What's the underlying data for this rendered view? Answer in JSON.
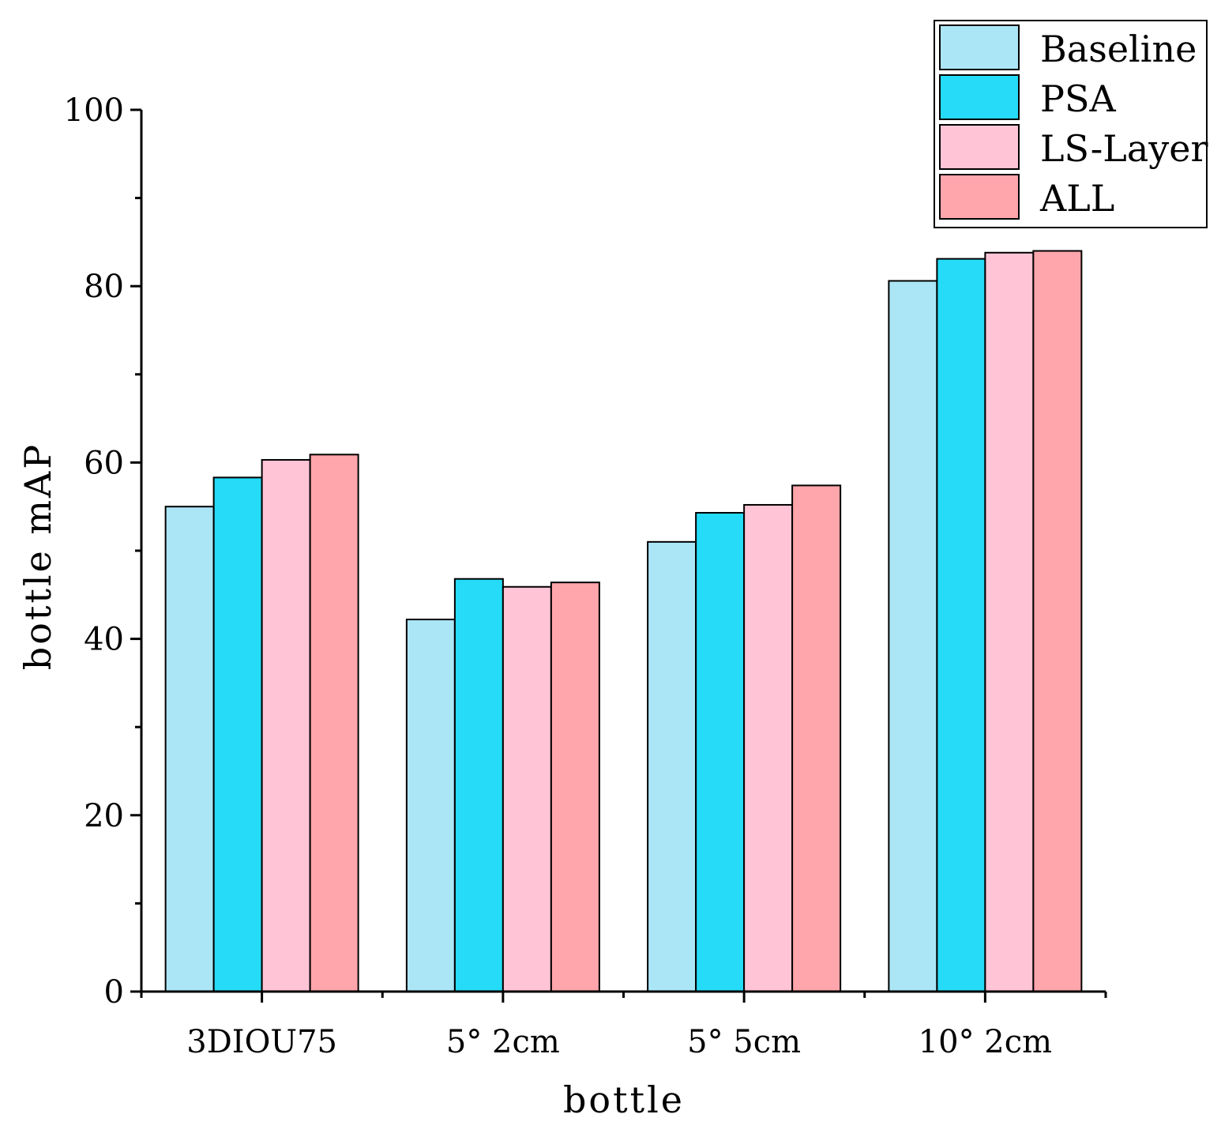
{
  "chart_data": {
    "type": "bar",
    "title": "",
    "xlabel": "bottle",
    "ylabel": "bottle mAP",
    "ylim": [
      0,
      100
    ],
    "yticks": [
      0,
      20,
      40,
      60,
      80,
      100
    ],
    "minor_tick_step": 10,
    "grid": false,
    "legend_position": "top-right",
    "categories": [
      "3DIOU75",
      "5° 2cm",
      "5° 5cm",
      "10° 2cm"
    ],
    "series": [
      {
        "name": "Baseline",
        "color": "#ABE6F7",
        "values": [
          55.0,
          42.2,
          51.0,
          80.6
        ]
      },
      {
        "name": "PSA",
        "color": "#25DBF7",
        "values": [
          58.3,
          46.8,
          54.3,
          83.1
        ]
      },
      {
        "name": "LS-Layer",
        "color": "#FFC4D6",
        "values": [
          60.3,
          45.9,
          55.2,
          83.8
        ]
      },
      {
        "name": "ALL",
        "color": "#FFA6AC",
        "values": [
          60.9,
          46.4,
          57.4,
          84.0
        ]
      }
    ]
  }
}
